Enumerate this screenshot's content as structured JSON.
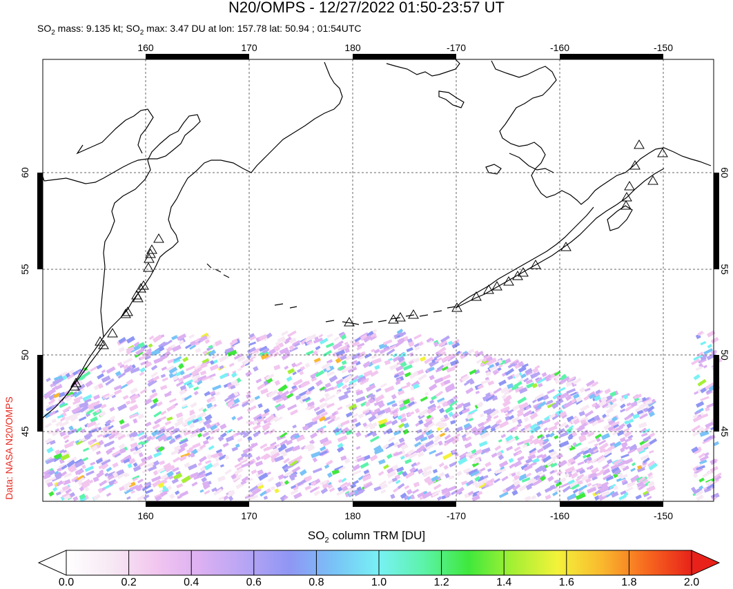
{
  "title": "N20/OMPS - 12/27/2022 01:50-23:57 UT",
  "stats": {
    "mass_prefix": "SO",
    "mass_sub": "2",
    "mass_text": " mass: 9.135 kt; SO",
    "max_sub": "2",
    "max_text": " max: 3.47 DU at lon: 157.78 lat: 50.94 ; 01:54UTC"
  },
  "credit": "Data: NASA N20/OMPS",
  "colorbar": {
    "title_prefix": "SO",
    "title_sub": "2",
    "title_suffix": " column TRM [DU]",
    "ticks": [
      "0.0",
      "0.2",
      "0.4",
      "0.6",
      "0.8",
      "1.0",
      "1.2",
      "1.4",
      "1.6",
      "1.8",
      "2.0"
    ],
    "colors": [
      "#ffffff",
      "#f7e9f4",
      "#f2c6ef",
      "#dcb0f2",
      "#b7a5f4",
      "#8f96f4",
      "#79c3f7",
      "#78f1f4",
      "#5cf3aa",
      "#3fe83c",
      "#a5f034",
      "#f3f23a",
      "#f9b82e",
      "#f7681f",
      "#e8221a"
    ]
  },
  "map": {
    "lon_labels_top": [
      "160",
      "170",
      "180",
      "-170",
      "-160",
      "-150"
    ],
    "lon_labels_bottom": [
      "160",
      "170",
      "180",
      "-170",
      "-160",
      "-150"
    ],
    "lat_labels_left": [
      "60",
      "55",
      "50",
      "45"
    ],
    "lat_labels_right": [
      "60",
      "55",
      "50",
      "45"
    ],
    "coast_color": "#000000",
    "grid_color": "#555555",
    "volcano_icon": "triangle-icon"
  }
}
